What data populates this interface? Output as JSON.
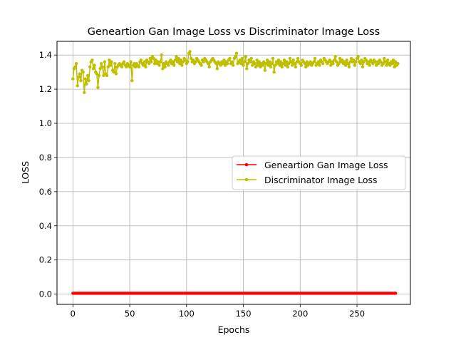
{
  "chart_data": {
    "type": "line",
    "title": "Geneartion Gan Image Loss vs Discriminator Image Loss",
    "xlabel": "Epochs",
    "ylabel": "LOSS",
    "xlim": [
      -14,
      297
    ],
    "ylim": [
      -0.06,
      1.48
    ],
    "x_ticks": [
      0,
      50,
      100,
      150,
      200,
      250
    ],
    "y_ticks": [
      0.0,
      0.2,
      0.4,
      0.6,
      0.8,
      1.0,
      1.2,
      1.4
    ],
    "x_tick_labels": [
      "0",
      "50",
      "100",
      "150",
      "200",
      "250"
    ],
    "y_tick_labels": [
      "0.0",
      "0.2",
      "0.4",
      "0.6",
      "0.8",
      "1.0",
      "1.2",
      "1.4"
    ],
    "grid": true,
    "legend_position": "center-right",
    "series": [
      {
        "name": "Geneartion Gan Image Loss",
        "color": "#ff0000",
        "marker": "dot",
        "x_start": 0,
        "x_end": 284,
        "constant_value": 0.005
      },
      {
        "name": "Discriminator Image Loss",
        "color": "#bfbf00",
        "marker": "dot",
        "x_start": 0,
        "x_end": 284,
        "values": [
          1.26,
          1.32,
          1.33,
          1.35,
          1.22,
          1.27,
          1.29,
          1.25,
          1.31,
          1.3,
          1.18,
          1.26,
          1.23,
          1.28,
          1.25,
          1.33,
          1.36,
          1.37,
          1.32,
          1.34,
          1.3,
          1.29,
          1.21,
          1.28,
          1.32,
          1.35,
          1.33,
          1.28,
          1.36,
          1.29,
          1.28,
          1.33,
          1.37,
          1.34,
          1.36,
          1.31,
          1.3,
          1.35,
          1.29,
          1.33,
          1.34,
          1.35,
          1.34,
          1.33,
          1.35,
          1.36,
          1.34,
          1.33,
          1.35,
          1.34,
          1.33,
          1.36,
          1.25,
          1.34,
          1.35,
          1.33,
          1.35,
          1.34,
          1.33,
          1.36,
          1.37,
          1.35,
          1.34,
          1.36,
          1.33,
          1.37,
          1.36,
          1.35,
          1.38,
          1.36,
          1.39,
          1.38,
          1.35,
          1.37,
          1.35,
          1.36,
          1.34,
          1.36,
          1.4,
          1.32,
          1.35,
          1.33,
          1.36,
          1.35,
          1.34,
          1.36,
          1.37,
          1.35,
          1.36,
          1.34,
          1.37,
          1.39,
          1.36,
          1.38,
          1.35,
          1.37,
          1.34,
          1.36,
          1.38,
          1.37,
          1.35,
          1.36,
          1.41,
          1.42,
          1.38,
          1.36,
          1.37,
          1.35,
          1.36,
          1.38,
          1.37,
          1.36,
          1.35,
          1.34,
          1.37,
          1.36,
          1.38,
          1.37,
          1.36,
          1.35,
          1.33,
          1.36,
          1.37,
          1.38,
          1.37,
          1.36,
          1.35,
          1.32,
          1.36,
          1.35,
          1.34,
          1.36,
          1.35,
          1.37,
          1.34,
          1.36,
          1.35,
          1.37,
          1.38,
          1.35,
          1.36,
          1.34,
          1.38,
          1.39,
          1.41,
          1.35,
          1.36,
          1.37,
          1.35,
          1.38,
          1.34,
          1.36,
          1.39,
          1.32,
          1.35,
          1.37,
          1.36,
          1.38,
          1.34,
          1.36,
          1.35,
          1.33,
          1.37,
          1.34,
          1.36,
          1.33,
          1.35,
          1.34,
          1.36,
          1.31,
          1.35,
          1.37,
          1.34,
          1.36,
          1.33,
          1.35,
          1.38,
          1.3,
          1.34,
          1.36,
          1.35,
          1.37,
          1.34,
          1.36,
          1.33,
          1.35,
          1.37,
          1.34,
          1.36,
          1.33,
          1.35,
          1.38,
          1.36,
          1.34,
          1.37,
          1.35,
          1.33,
          1.36,
          1.38,
          1.36,
          1.35,
          1.34,
          1.37,
          1.36,
          1.35,
          1.33,
          1.36,
          1.34,
          1.35,
          1.36,
          1.34,
          1.35,
          1.36,
          1.38,
          1.34,
          1.35,
          1.36,
          1.34,
          1.37,
          1.36,
          1.35,
          1.38,
          1.37,
          1.36,
          1.35,
          1.36,
          1.37,
          1.34,
          1.36,
          1.35,
          1.37,
          1.39,
          1.36,
          1.34,
          1.35,
          1.38,
          1.36,
          1.37,
          1.35,
          1.36,
          1.34,
          1.37,
          1.35,
          1.33,
          1.36,
          1.38,
          1.36,
          1.37,
          1.34,
          1.36,
          1.38,
          1.39,
          1.36,
          1.35,
          1.37,
          1.33,
          1.36,
          1.38,
          1.37,
          1.35,
          1.36,
          1.34,
          1.37,
          1.36,
          1.35,
          1.37,
          1.36,
          1.34,
          1.36,
          1.35,
          1.37,
          1.36,
          1.34,
          1.35,
          1.38,
          1.36,
          1.34,
          1.37,
          1.35,
          1.34,
          1.36,
          1.35,
          1.37,
          1.33,
          1.36,
          1.34,
          1.35
        ]
      }
    ]
  }
}
